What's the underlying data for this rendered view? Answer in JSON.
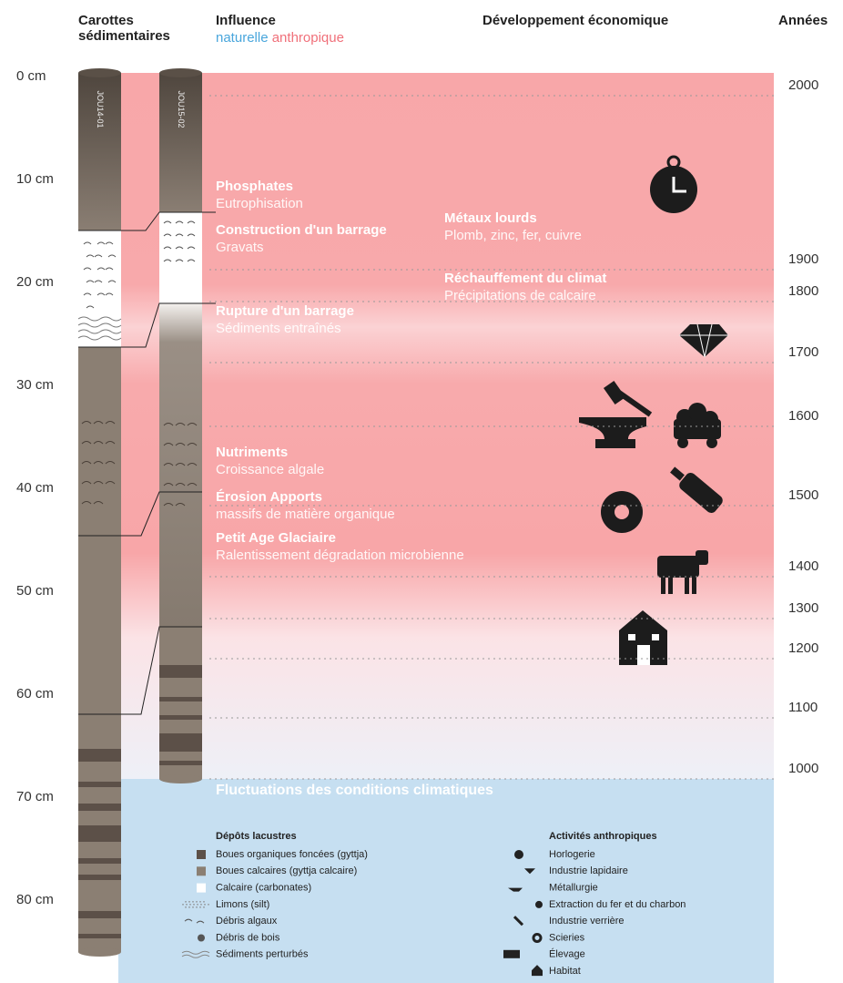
{
  "header": {
    "cores": "Carottes sédimentaires",
    "influence": "Influence",
    "natural": "naturelle",
    "anthropic": "anthropique",
    "development": "Développement économique",
    "years": "Années"
  },
  "depth_scale": [
    "0 cm",
    "10 cm",
    "20 cm",
    "30 cm",
    "40 cm",
    "50 cm",
    "60 cm",
    "70 cm",
    "80 cm"
  ],
  "cores": [
    "JOU14-01",
    "JOU15-02"
  ],
  "years": [
    "2000",
    "1900",
    "1800",
    "1700",
    "1600",
    "1500",
    "1400",
    "1300",
    "1200",
    "1100",
    "1000"
  ],
  "events": [
    {
      "title": "Phosphates",
      "subtitle": "Eutrophisation"
    },
    {
      "title": "Construction d'un barrage",
      "subtitle": "Gravats"
    },
    {
      "title": "Métaux lourds",
      "subtitle": "Plomb, zinc, fer, cuivre"
    },
    {
      "title": "Réchauffement du climat",
      "subtitle": "Précipitations de calcaire"
    },
    {
      "title": "Rupture d'un barrage",
      "subtitle": "Sédiments entraînés"
    },
    {
      "title": "Nutriments",
      "subtitle": "Croissance algale"
    },
    {
      "title": "Érosion Apports",
      "subtitle": "massifs de matière organique"
    },
    {
      "title": "Petit Age Glaciaire",
      "subtitle": "Ralentissement dégradation microbienne"
    }
  ],
  "climate": "Fluctuations des conditions climatiques",
  "legend_deposits": {
    "title": "Dépôts lacustres",
    "items": [
      "Boues organiques foncées (gyttja)",
      "Boues calcaires (gyttja calcaire)",
      "Calcaire (carbonates)",
      "Limons (silt)",
      "Débris algaux",
      "Débris de bois",
      "Sédiments perturbés"
    ]
  },
  "legend_activities": {
    "title": "Activités anthropiques",
    "items": [
      "Horlogerie",
      "Industrie lapidaire",
      "Métallurgie",
      "Extraction du fer et du charbon",
      "Industrie verrière",
      "Scieries",
      "Élevage",
      "Habitat"
    ]
  }
}
